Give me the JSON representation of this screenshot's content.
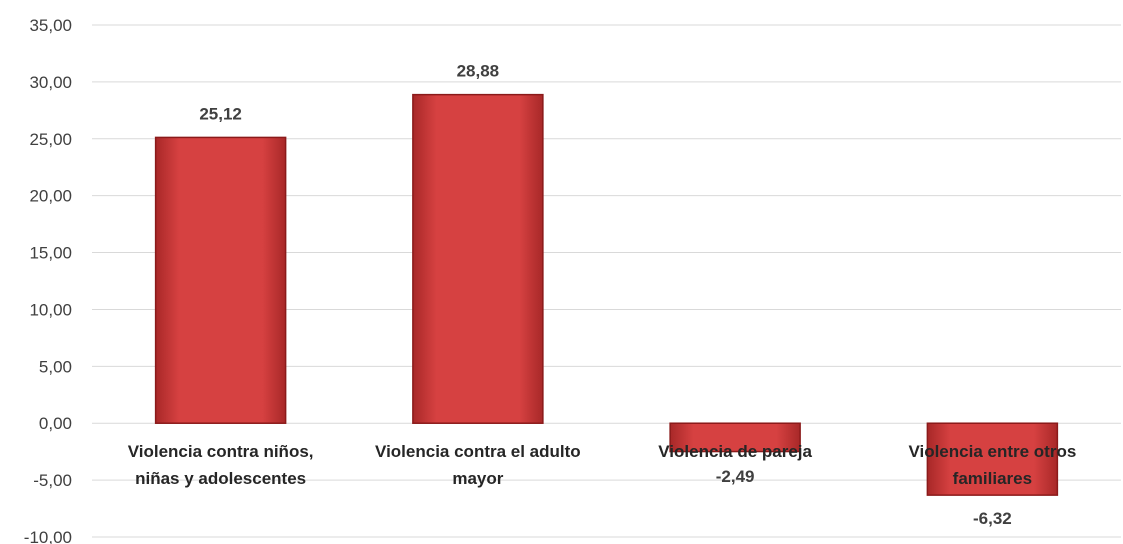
{
  "chart_data": {
    "type": "bar",
    "title": "",
    "xlabel": "",
    "ylabel": "",
    "categories": [
      [
        "Violencia contra niños,",
        "niñas y adolescentes"
      ],
      [
        "Violencia contra el adulto",
        "mayor"
      ],
      [
        "Violencia de pareja"
      ],
      [
        "Violencia entre otros",
        "familiares"
      ]
    ],
    "values": [
      25.12,
      28.88,
      -2.49,
      -6.32
    ],
    "value_labels": [
      "25,12",
      "28,88",
      "-2,49",
      "-6,32"
    ],
    "ylim": [
      -10,
      35
    ],
    "yticks": [
      35,
      30,
      25,
      20,
      15,
      10,
      5,
      0,
      -5,
      -10
    ],
    "ytick_labels": [
      "35,00",
      "30,00",
      "25,00",
      "20,00",
      "15,00",
      "10,00",
      "5,00",
      "0,00",
      "-5,00",
      "-10,00"
    ],
    "grid": true,
    "legend": "none",
    "bar_color": "#d64141",
    "bar_edge_color": "#8b1a1a"
  }
}
